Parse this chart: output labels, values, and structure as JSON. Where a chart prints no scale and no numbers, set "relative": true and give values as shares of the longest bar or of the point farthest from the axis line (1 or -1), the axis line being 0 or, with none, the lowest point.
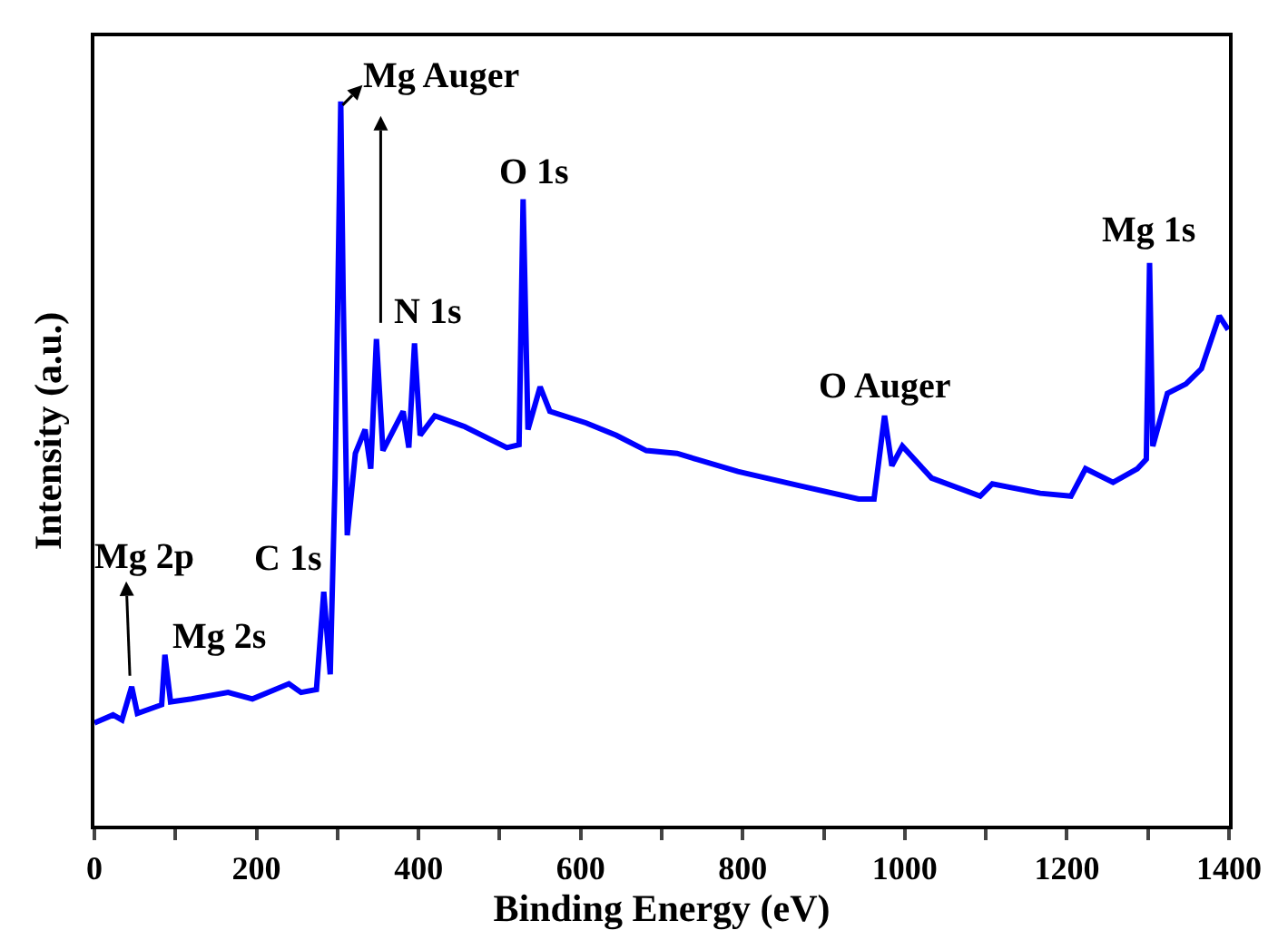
{
  "chart_data": {
    "type": "line",
    "relative": true,
    "xlabel": "Binding Energy (eV)",
    "ylabel": "Intensity (a.u.)",
    "xlim": [
      0,
      1400
    ],
    "xticks": [
      0,
      {
        "value": 100,
        "label": null
      },
      200,
      {
        "value": 300,
        "label": null
      },
      400,
      {
        "value": 500,
        "label": null
      },
      600,
      {
        "value": 700,
        "label": null
      },
      800,
      {
        "value": 900,
        "label": null
      },
      1000,
      {
        "value": 1100,
        "label": null
      },
      1200,
      {
        "value": 1300,
        "label": null
      },
      1400
    ],
    "tick_labels": "x",
    "grid": false,
    "legend": false,
    "marker": "none",
    "line_style": "solid",
    "series": [
      {
        "color": "#0000ff",
        "x": [
          0,
          23,
          34,
          46,
          53,
          83,
          87,
          94,
          120,
          165,
          195,
          240,
          255,
          274,
          283,
          291,
          297,
          304,
          307,
          312,
          322,
          334,
          341,
          348,
          356,
          381,
          388,
          395,
          402,
          420,
          457,
          509,
          524,
          529,
          535,
          550,
          562,
          607,
          644,
          681,
          719,
          794,
          868,
          943,
          962,
          975,
          984,
          997,
          1033,
          1093,
          1108,
          1167,
          1205,
          1223,
          1257,
          1287,
          1298,
          1302,
          1306,
          1324,
          1347,
          1366,
          1388,
          1399
        ],
        "values": [
          0.142,
          0.153,
          0.146,
          0.192,
          0.155,
          0.167,
          0.236,
          0.171,
          0.175,
          0.184,
          0.175,
          0.196,
          0.184,
          0.188,
          0.323,
          0.209,
          0.481,
          1.0,
          0.732,
          0.401,
          0.514,
          0.547,
          0.493,
          0.672,
          0.518,
          0.572,
          0.522,
          0.666,
          0.539,
          0.566,
          0.551,
          0.522,
          0.526,
          0.865,
          0.547,
          0.606,
          0.572,
          0.556,
          0.539,
          0.518,
          0.514,
          0.489,
          0.47,
          0.451,
          0.451,
          0.566,
          0.497,
          0.524,
          0.48,
          0.455,
          0.472,
          0.459,
          0.455,
          0.493,
          0.474,
          0.493,
          0.506,
          0.777,
          0.524,
          0.597,
          0.61,
          0.631,
          0.704,
          0.685
        ]
      }
    ],
    "annotations": [
      {
        "text": "Mg 2p",
        "x": 46,
        "y": 0.192
      },
      {
        "text": "Mg 2s",
        "x": 87,
        "y": 0.236
      },
      {
        "text": "C 1s",
        "x": 283,
        "y": 0.323
      },
      {
        "text": "Mg Auger",
        "x": 304,
        "y": 1.0
      },
      {
        "text": "N 1s",
        "x": 395,
        "y": 0.666
      },
      {
        "text": "O 1s",
        "x": 529,
        "y": 0.865
      },
      {
        "text": "O Auger",
        "x": 975,
        "y": 0.566
      },
      {
        "text": "Mg 1s",
        "x": 1302,
        "y": 0.777
      }
    ]
  }
}
